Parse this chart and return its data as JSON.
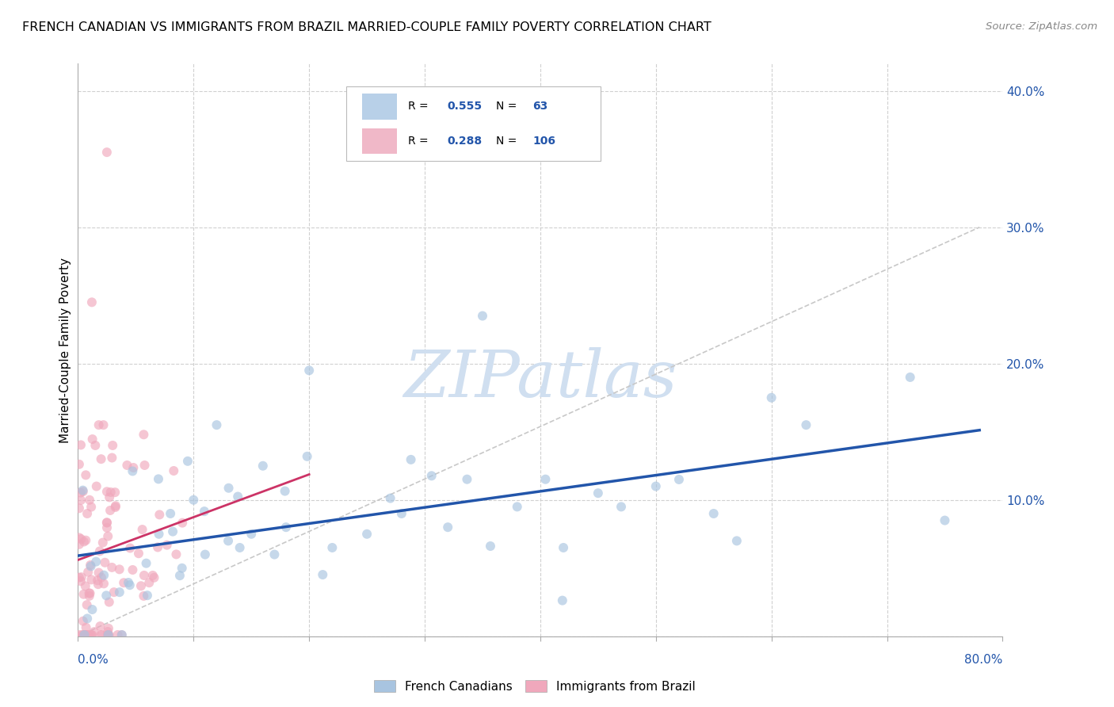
{
  "title": "FRENCH CANADIAN VS IMMIGRANTS FROM BRAZIL MARRIED-COUPLE FAMILY POVERTY CORRELATION CHART",
  "source": "Source: ZipAtlas.com",
  "ylabel": "Married-Couple Family Poverty",
  "xlim": [
    0.0,
    0.8
  ],
  "ylim": [
    0.0,
    0.42
  ],
  "series1_name": "French Canadians",
  "series1_color": "#a8c4e0",
  "series1_line_color": "#2255aa",
  "series2_name": "Immigrants from Brazil",
  "series2_color": "#f0a8bc",
  "series2_line_color": "#cc3366",
  "ref_line_color": "#c8c8c8",
  "watermark": "ZIPatlas",
  "watermark_color": "#d0dff0",
  "background_color": "#ffffff",
  "grid_color": "#d0d0d0",
  "title_fontsize": 11.5,
  "axis_label_fontsize": 11,
  "tick_fontsize": 11,
  "legend_R1": "0.555",
  "legend_N1": "63",
  "legend_R2": "0.288",
  "legend_N2": "106",
  "legend_box1_color": "#b8d0e8",
  "legend_box2_color": "#f0b8c8",
  "legend_text_color": "#2255aa",
  "ytick_positions": [
    0.0,
    0.1,
    0.2,
    0.3,
    0.4
  ],
  "ytick_labels": [
    "",
    "10.0%",
    "20.0%",
    "30.0%",
    "40.0%"
  ],
  "scatter_alpha": 0.65,
  "scatter_size": 75
}
